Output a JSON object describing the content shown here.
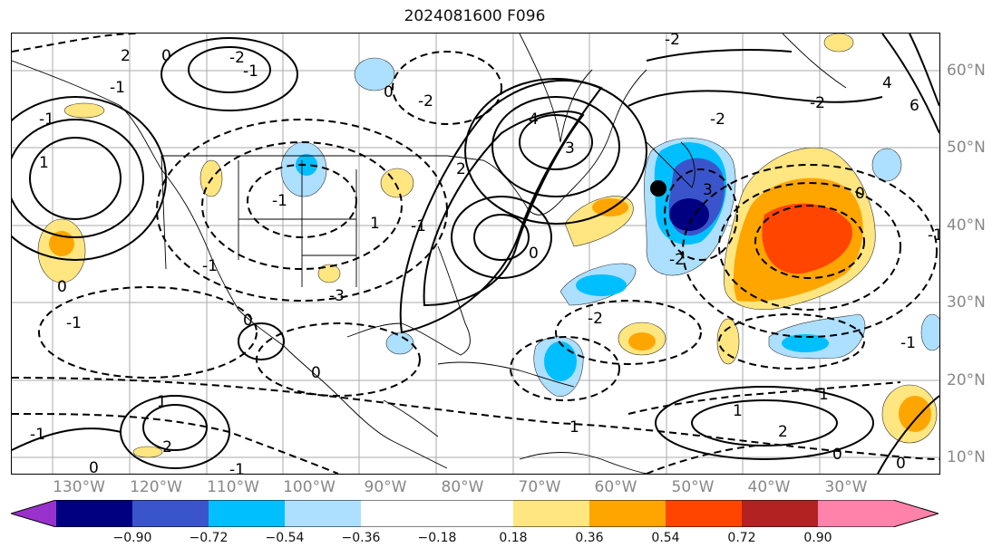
{
  "title": "2024081600 F096",
  "map": {
    "lon_labels": [
      "130°W",
      "120°W",
      "110°W",
      "100°W",
      "90°W",
      "80°W",
      "70°W",
      "60°W",
      "50°W",
      "40°W",
      "30°W"
    ],
    "lat_labels": [
      "60°N",
      "50°N",
      "40°N",
      "30°N",
      "20°N",
      "10°N"
    ],
    "marker": "storm-center-dot",
    "contour_labels": [
      "2",
      "0",
      "-2",
      "-1",
      "1",
      "4",
      "3",
      "2",
      "-1",
      "0",
      "-2",
      "-3",
      "3",
      "0",
      "-1",
      "-2",
      "0",
      "-1",
      "1",
      "2",
      "0",
      "0",
      "-1",
      "-2",
      "-1",
      "1",
      "-2",
      "0",
      "-1",
      "-1",
      "-1",
      "0",
      "1",
      "-2",
      "1",
      "-1",
      "0",
      "-1",
      "4",
      "6",
      "-2",
      "1",
      "0",
      "-2"
    ]
  },
  "colorbar": {
    "ticks": [
      "−0.90",
      "−0.72",
      "−0.54",
      "−0.36",
      "−0.18",
      "0.18",
      "0.36",
      "0.54",
      "0.72",
      "0.90"
    ],
    "colors": [
      "#9932CC",
      "#000080",
      "#3A55CC",
      "#00BFFF",
      "#ADDFFF",
      "#FFFFFF",
      "#FFE680",
      "#FFA500",
      "#FF4500",
      "#B22222",
      "#FF82AB"
    ]
  }
}
